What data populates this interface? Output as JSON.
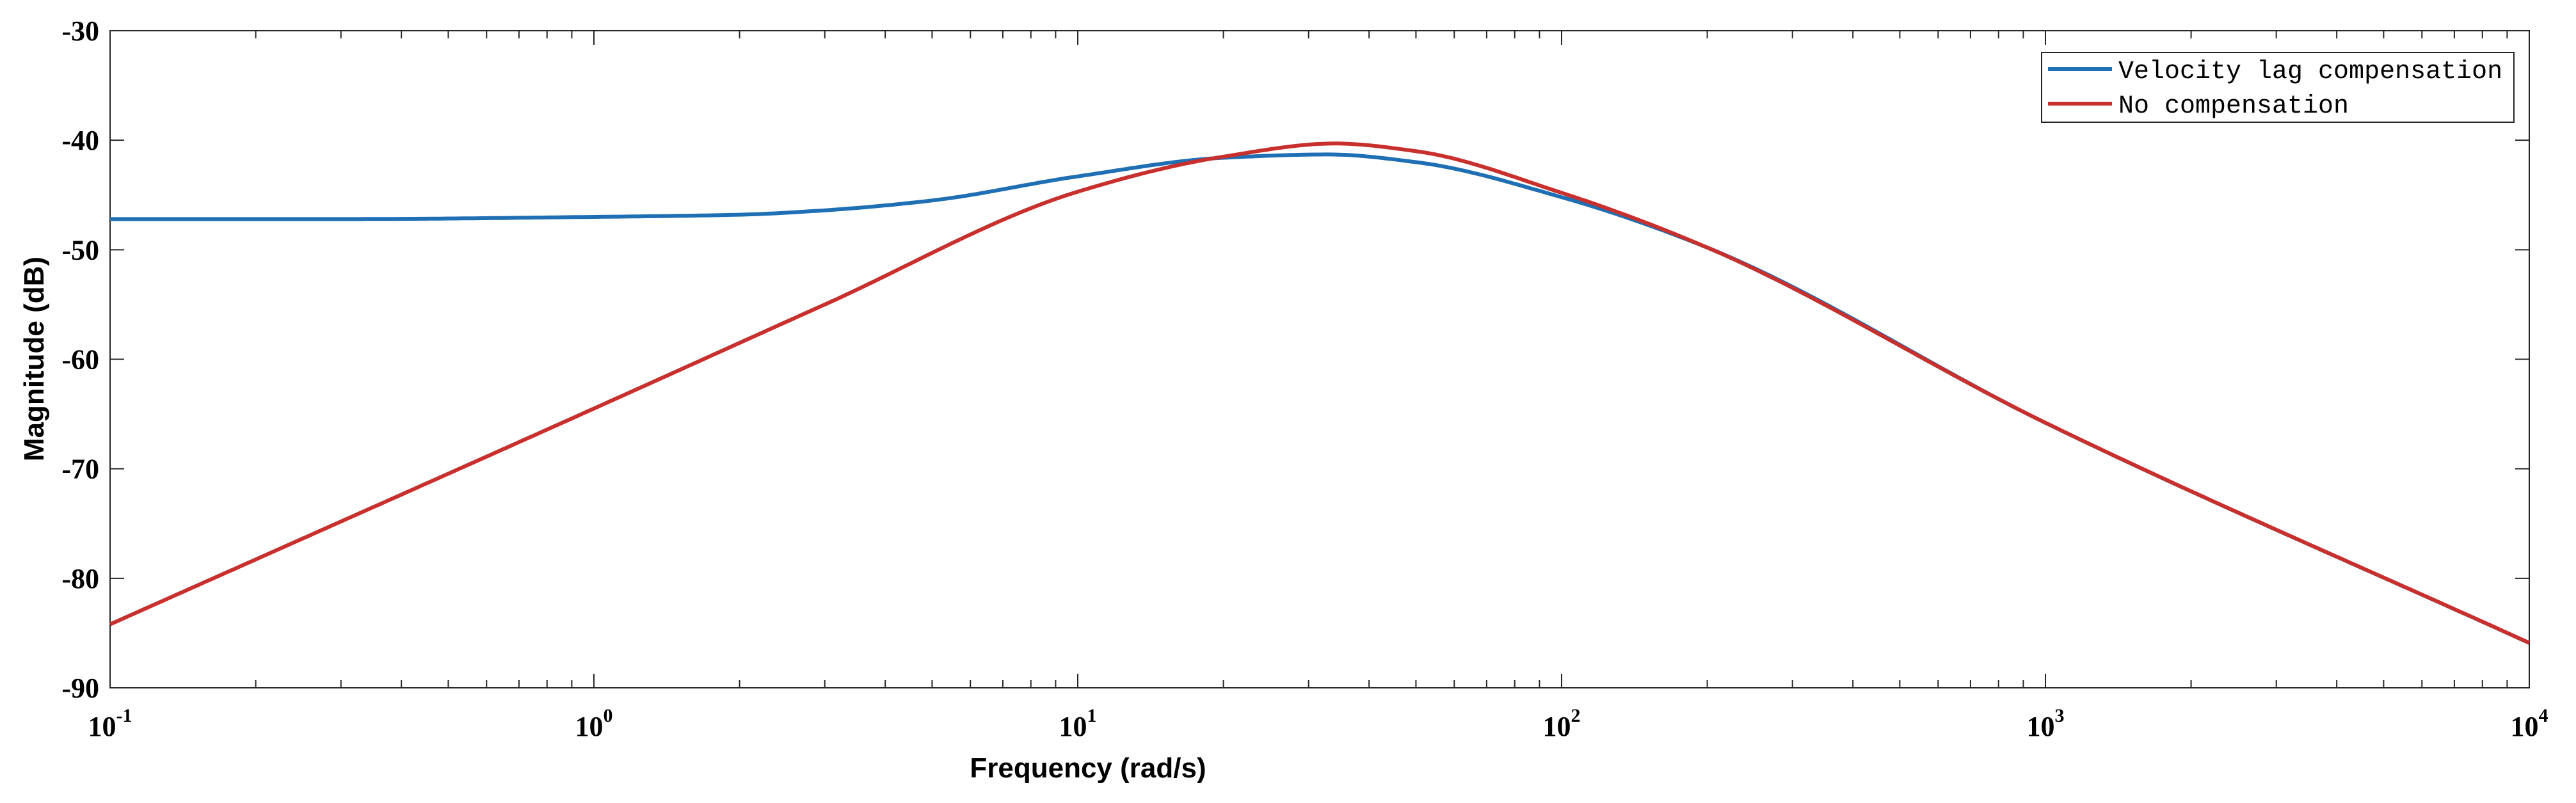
{
  "chart_data": {
    "type": "line",
    "title": "",
    "xlabel": "Frequency  (rad/s)",
    "ylabel": "Magnitude (dB)",
    "xscale": "log",
    "xlim": [
      0.1,
      10000
    ],
    "ylim": [
      -90,
      -30
    ],
    "x_ticks": [
      {
        "base": "10",
        "exp": "-1",
        "value": 0.1
      },
      {
        "base": "10",
        "exp": "0",
        "value": 1
      },
      {
        "base": "10",
        "exp": "1",
        "value": 10
      },
      {
        "base": "10",
        "exp": "2",
        "value": 100
      },
      {
        "base": "10",
        "exp": "3",
        "value": 1000
      },
      {
        "base": "10",
        "exp": "4",
        "value": 10000
      }
    ],
    "y_ticks": [
      {
        "label": "-30",
        "value": -30
      },
      {
        "label": "-40",
        "value": -40
      },
      {
        "label": "-50",
        "value": -50
      },
      {
        "label": "-60",
        "value": -60
      },
      {
        "label": "-70",
        "value": -70
      },
      {
        "label": "-80",
        "value": -80
      },
      {
        "label": "-90",
        "value": -90
      }
    ],
    "grid": false,
    "legend_position": "top-right",
    "series": [
      {
        "name": "Velocity lag compensation",
        "color": "#1f6fb4",
        "x": [
          0.1,
          0.3,
          1,
          2,
          3,
          5,
          10,
          20,
          33,
          50,
          100,
          200,
          1000,
          10000
        ],
        "y": [
          -47.2,
          -47.2,
          -47.0,
          -46.8,
          -46.4,
          -45.5,
          -43.3,
          -41.6,
          -41.3,
          -42.0,
          -45.2,
          -49.8,
          -65.8,
          -85.9
        ]
      },
      {
        "name": "No compensation",
        "color": "#c8302e",
        "x": [
          0.1,
          1,
          3,
          10,
          20,
          34,
          50,
          100,
          200,
          1000,
          10000
        ],
        "y": [
          -84.2,
          -64.5,
          -55.0,
          -44.7,
          -41.5,
          -40.3,
          -41.0,
          -44.8,
          -49.8,
          -65.8,
          -85.9
        ]
      }
    ]
  }
}
